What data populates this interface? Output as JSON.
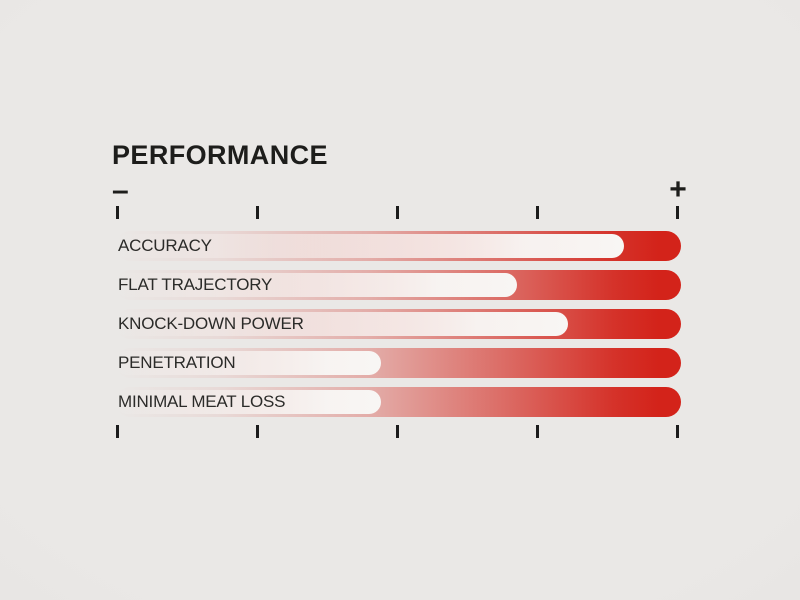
{
  "header": {
    "title": "PERFORMANCE"
  },
  "scale": {
    "min_label": "–",
    "max_label": "+",
    "tick_count": 5
  },
  "colors": {
    "accent_red": "#d3231a",
    "indicator_white": "#f8f6f4",
    "text": "#1d1d1b",
    "tick": "#1c1c1c",
    "background": "#e8e6e4"
  },
  "chart_data": {
    "type": "bar",
    "orientation": "horizontal",
    "title": "PERFORMANCE",
    "categories": [
      "ACCURACY",
      "FLAT TRAJECTORY",
      "KNOCK-DOWN POWER",
      "PENETRATION",
      "MINIMAL MEAT LOSS"
    ],
    "values": [
      90,
      71,
      80,
      47,
      47
    ],
    "xlim": [
      0,
      100
    ],
    "axis": {
      "min_symbol": "–",
      "max_symbol": "+",
      "tick_count": 5,
      "ticks_top": true,
      "ticks_bottom": true,
      "grid": false
    },
    "legend": "none",
    "bar_style": "red gradient track with rounded right cap; white pill indicator whose rounded tip marks the value"
  }
}
